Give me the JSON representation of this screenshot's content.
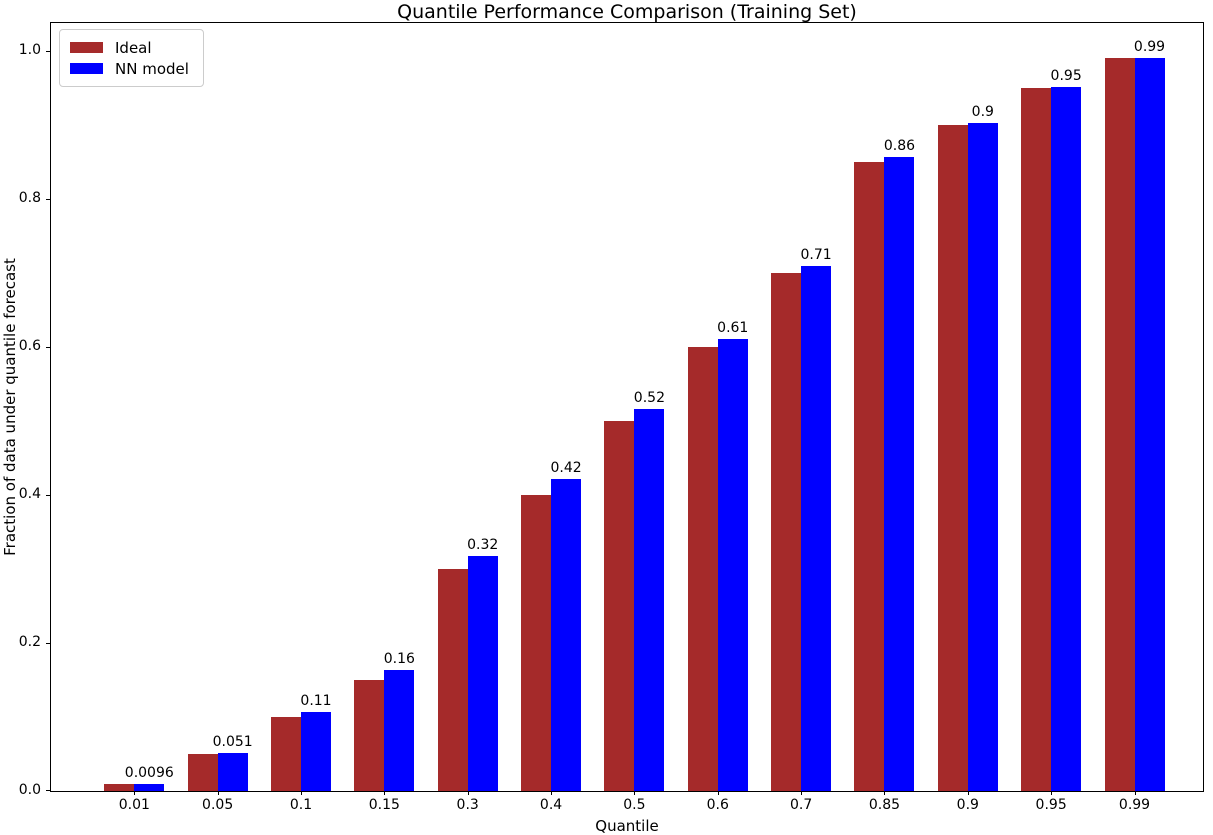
{
  "chart_data": {
    "type": "bar",
    "title": "Quantile Performance Comparison (Training Set)",
    "xlabel": "Quantile",
    "ylabel": "Fraction of data under quantile forecast",
    "categories": [
      "0.01",
      "0.05",
      "0.1",
      "0.15",
      "0.3",
      "0.4",
      "0.5",
      "0.6",
      "0.7",
      "0.85",
      "0.9",
      "0.95",
      "0.99"
    ],
    "series": [
      {
        "name": "Ideal",
        "color": "#a52a2a",
        "values": [
          0.01,
          0.05,
          0.1,
          0.15,
          0.3,
          0.4,
          0.5,
          0.6,
          0.7,
          0.85,
          0.9,
          0.95,
          0.99
        ]
      },
      {
        "name": "NN model",
        "color": "#0000ff",
        "values": [
          0.0096,
          0.051,
          0.107,
          0.163,
          0.318,
          0.422,
          0.516,
          0.611,
          0.709,
          0.857,
          0.903,
          0.951,
          0.99
        ],
        "bar_labels": [
          "0.0096",
          "0.051",
          "0.11",
          "0.16",
          "0.32",
          "0.42",
          "0.52",
          "0.61",
          "0.71",
          "0.86",
          "0.9",
          "0.95",
          "0.99"
        ]
      }
    ],
    "yticks": {
      "values": [
        0,
        0.2,
        0.4,
        0.6,
        0.8,
        1.0
      ],
      "labels": [
        "0.0",
        "0.2",
        "0.4",
        "0.6",
        "0.8",
        "1.0"
      ]
    },
    "ylim": [
      0,
      1.04
    ],
    "grid": false,
    "legend_position": "upper left"
  }
}
